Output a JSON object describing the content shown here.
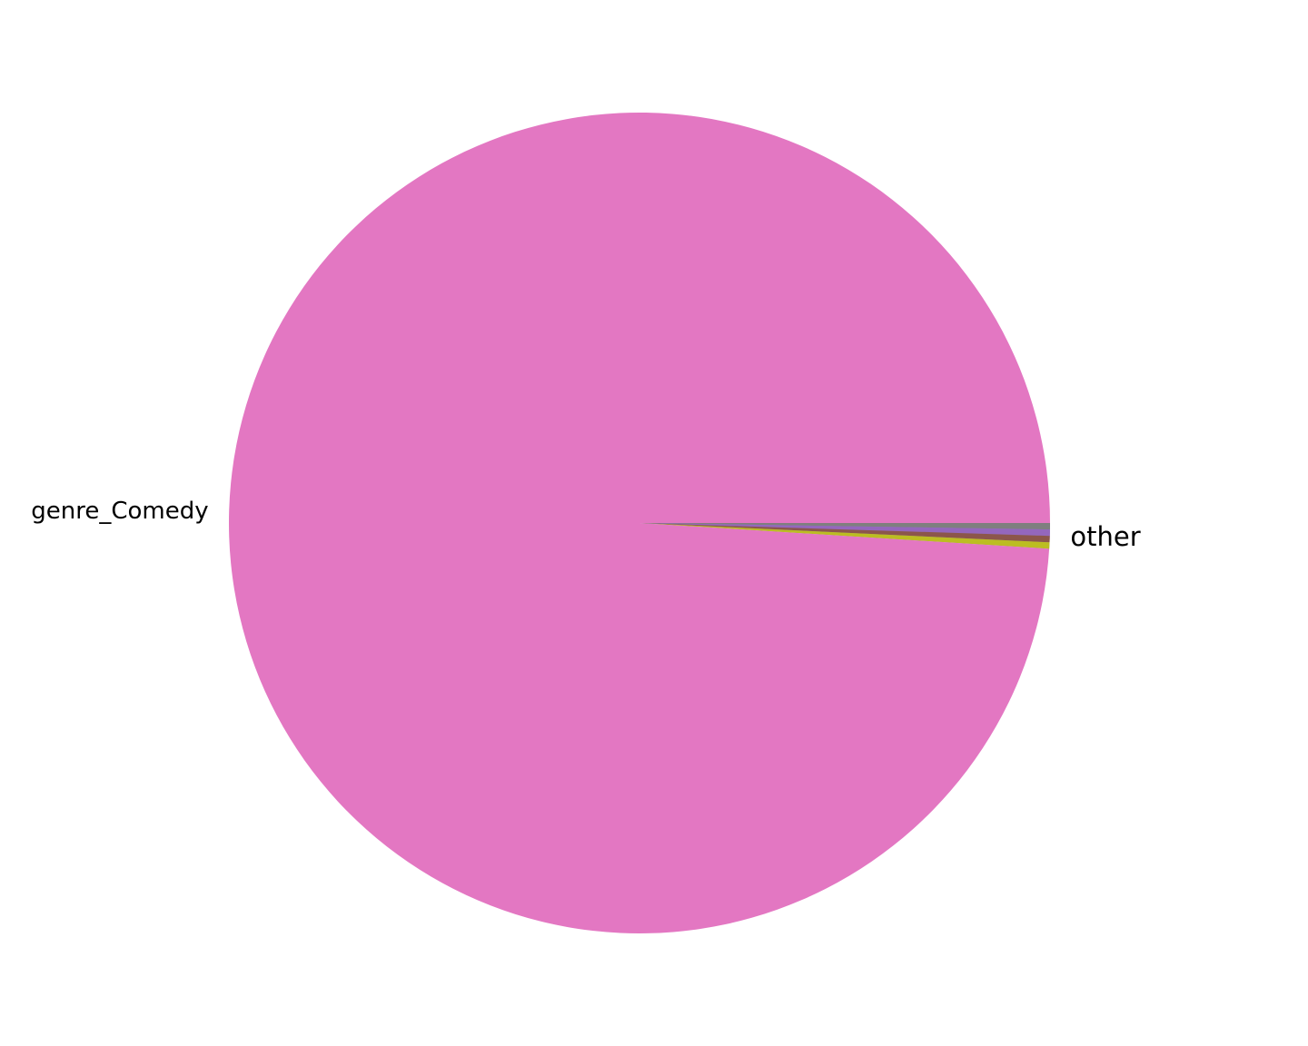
{
  "chart_data": {
    "type": "pie",
    "slices": [
      {
        "label": "genre_Comedy",
        "value": 99.0,
        "color": "#e377c2"
      },
      {
        "label": "other",
        "value": 1.0,
        "color": "#8c7fb8"
      }
    ],
    "other_subslice_colors": [
      "#7f7f7f",
      "#9467bd",
      "#8c564b",
      "#bcbd22"
    ],
    "start_angle_deg": 0,
    "direction": "clockwise"
  }
}
